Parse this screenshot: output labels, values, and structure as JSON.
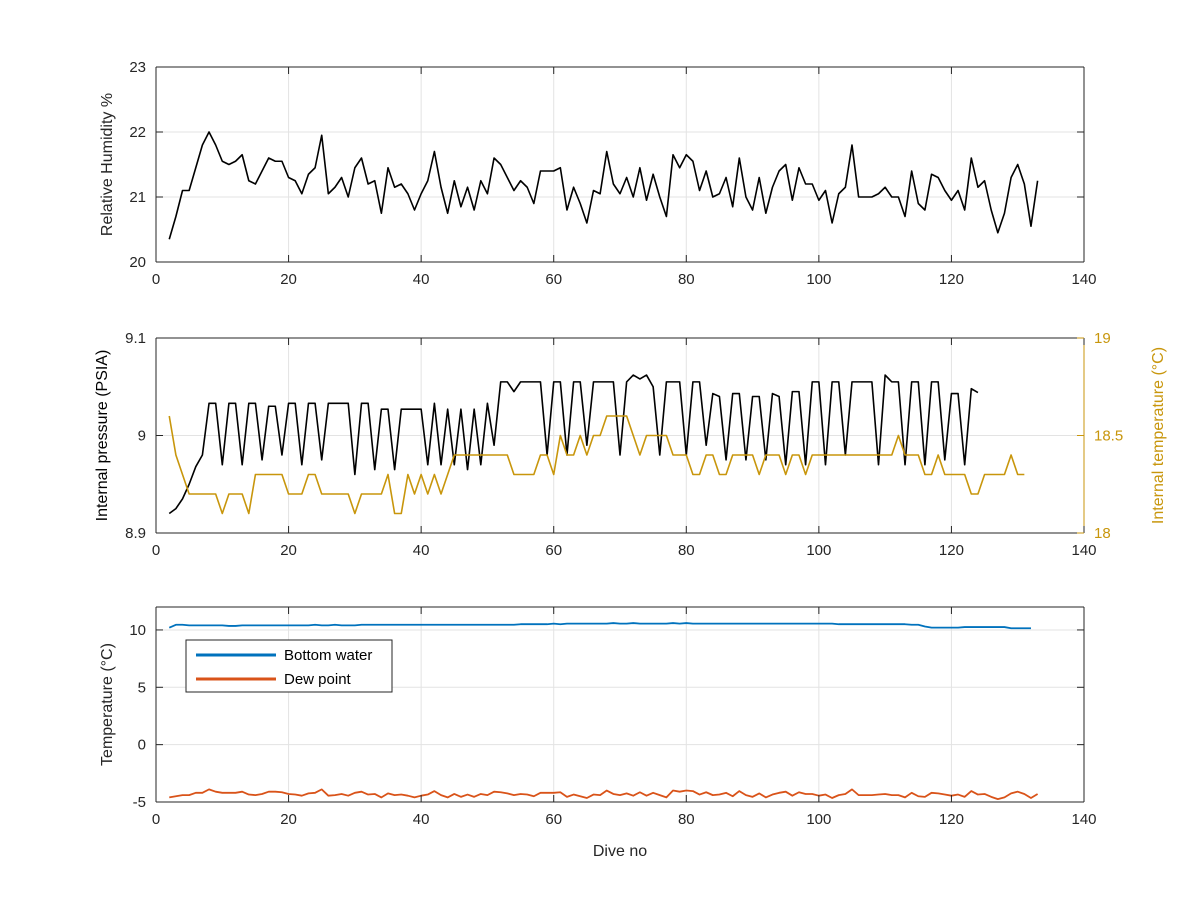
{
  "chart_data": [
    {
      "type": "line",
      "xlabel": "",
      "ylabel": "Relative Humidity %",
      "xlim": [
        0,
        140
      ],
      "ylim": [
        20,
        23
      ],
      "xticks": [
        0,
        20,
        40,
        60,
        80,
        100,
        120,
        140
      ],
      "yticks": [
        20,
        21,
        22,
        23
      ],
      "grid": true,
      "series": [
        {
          "color": "#000000",
          "x_start": 2,
          "x_step": 1,
          "values": [
            20.35,
            20.7,
            21.1,
            21.1,
            21.45,
            21.8,
            22.0,
            21.8,
            21.55,
            21.5,
            21.55,
            21.65,
            21.25,
            21.2,
            21.4,
            21.6,
            21.55,
            21.55,
            21.3,
            21.25,
            21.05,
            21.35,
            21.45,
            21.95,
            21.05,
            21.15,
            21.3,
            21.0,
            21.45,
            21.6,
            21.2,
            21.25,
            20.75,
            21.45,
            21.15,
            21.2,
            21.05,
            20.8,
            21.05,
            21.25,
            21.7,
            21.15,
            20.75,
            21.25,
            20.85,
            21.15,
            20.8,
            21.25,
            21.05,
            21.6,
            21.5,
            21.3,
            21.1,
            21.25,
            21.15,
            20.9,
            21.4,
            21.4,
            21.4,
            21.45,
            20.8,
            21.15,
            20.9,
            20.6,
            21.1,
            21.05,
            21.7,
            21.2,
            21.05,
            21.3,
            21.0,
            21.45,
            20.95,
            21.35,
            21.0,
            20.7,
            21.65,
            21.45,
            21.65,
            21.55,
            21.1,
            21.4,
            21.0,
            21.05,
            21.3,
            20.85,
            21.6,
            21.0,
            20.8,
            21.3,
            20.75,
            21.15,
            21.4,
            21.5,
            20.95,
            21.45,
            21.2,
            21.2,
            20.95,
            21.1,
            20.6,
            21.05,
            21.15,
            21.8,
            21.0,
            21.0,
            21.0,
            21.05,
            21.15,
            21.0,
            21.0,
            20.7,
            21.4,
            20.9,
            20.8,
            21.35,
            21.3,
            21.1,
            20.95,
            21.1,
            20.8,
            21.6,
            21.15,
            21.25,
            20.8,
            20.45,
            20.75,
            21.3,
            21.5,
            21.2,
            20.55,
            21.25
          ]
        }
      ]
    },
    {
      "type": "line",
      "xlabel": "",
      "ylabel": "Internal pressure (PSIA)",
      "y2label": "Internal temperature (°C)",
      "xlim": [
        0,
        140
      ],
      "ylim": [
        8.9,
        9.1
      ],
      "y2lim": [
        18,
        19
      ],
      "xticks": [
        0,
        20,
        40,
        60,
        80,
        100,
        120,
        140
      ],
      "yticks": [
        8.9,
        9,
        9.1
      ],
      "yticklabels": [
        "8.9",
        "9",
        "9.1"
      ],
      "y2ticks": [
        18,
        18.5,
        19
      ],
      "y2ticklabels": [
        "18",
        "18.5",
        "19"
      ],
      "grid": true,
      "series": [
        {
          "color": "#000000",
          "axis": "left",
          "x_start": 2,
          "x_step": 1,
          "values": [
            8.92,
            8.925,
            8.935,
            8.95,
            8.968,
            8.98,
            9.033,
            9.033,
            8.97,
            9.033,
            9.033,
            8.97,
            9.033,
            9.033,
            8.975,
            9.03,
            9.03,
            8.98,
            9.033,
            9.033,
            8.97,
            9.033,
            9.033,
            8.975,
            9.033,
            9.033,
            9.033,
            9.033,
            8.96,
            9.033,
            9.033,
            8.965,
            9.027,
            9.027,
            8.965,
            9.027,
            9.027,
            9.027,
            9.027,
            8.97,
            9.033,
            8.97,
            9.027,
            8.97,
            9.027,
            8.965,
            9.027,
            8.97,
            9.033,
            8.99,
            9.055,
            9.055,
            9.045,
            9.055,
            9.055,
            9.055,
            9.055,
            8.98,
            9.055,
            9.055,
            8.98,
            9.055,
            9.055,
            8.99,
            9.055,
            9.055,
            9.055,
            9.055,
            8.98,
            9.055,
            9.062,
            9.058,
            9.062,
            9.05,
            8.98,
            9.055,
            9.055,
            9.055,
            8.98,
            9.055,
            9.055,
            8.99,
            9.043,
            9.04,
            8.975,
            9.043,
            9.043,
            8.975,
            9.04,
            9.04,
            8.975,
            9.043,
            9.04,
            8.97,
            9.045,
            9.045,
            8.97,
            9.055,
            9.055,
            8.97,
            9.055,
            9.055,
            8.98,
            9.055,
            9.055,
            9.055,
            9.055,
            8.97,
            9.062,
            9.055,
            9.055,
            8.97,
            9.055,
            9.055,
            8.97,
            9.055,
            9.055,
            8.975,
            9.043,
            9.043,
            8.97,
            9.048,
            9.044
          ]
        },
        {
          "color": "#C8960C",
          "axis": "right",
          "x_start": 2,
          "x_step": 1,
          "values": [
            18.6,
            18.4,
            18.3,
            18.2,
            18.2,
            18.2,
            18.2,
            18.2,
            18.1,
            18.2,
            18.2,
            18.2,
            18.1,
            18.3,
            18.3,
            18.3,
            18.3,
            18.3,
            18.2,
            18.2,
            18.2,
            18.3,
            18.3,
            18.2,
            18.2,
            18.2,
            18.2,
            18.2,
            18.1,
            18.2,
            18.2,
            18.2,
            18.2,
            18.3,
            18.1,
            18.1,
            18.3,
            18.2,
            18.3,
            18.2,
            18.3,
            18.2,
            18.3,
            18.4,
            18.4,
            18.4,
            18.4,
            18.4,
            18.4,
            18.4,
            18.4,
            18.4,
            18.3,
            18.3,
            18.3,
            18.3,
            18.4,
            18.4,
            18.3,
            18.5,
            18.4,
            18.4,
            18.5,
            18.4,
            18.5,
            18.5,
            18.6,
            18.6,
            18.6,
            18.6,
            18.5,
            18.4,
            18.5,
            18.5,
            18.5,
            18.5,
            18.4,
            18.4,
            18.4,
            18.3,
            18.3,
            18.4,
            18.4,
            18.3,
            18.3,
            18.4,
            18.4,
            18.4,
            18.4,
            18.3,
            18.4,
            18.4,
            18.4,
            18.3,
            18.4,
            18.4,
            18.3,
            18.4,
            18.4,
            18.4,
            18.4,
            18.4,
            18.4,
            18.4,
            18.4,
            18.4,
            18.4,
            18.4,
            18.4,
            18.4,
            18.5,
            18.4,
            18.4,
            18.4,
            18.3,
            18.3,
            18.4,
            18.3,
            18.3,
            18.3,
            18.3,
            18.2,
            18.2,
            18.3,
            18.3,
            18.3,
            18.3,
            18.4,
            18.3,
            18.3
          ]
        }
      ]
    },
    {
      "type": "line",
      "xlabel": "Dive no",
      "ylabel": "Temperature (°C)",
      "xlim": [
        0,
        140
      ],
      "ylim": [
        -5,
        12
      ],
      "xticks": [
        0,
        20,
        40,
        60,
        80,
        100,
        120,
        140
      ],
      "yticks": [
        -5,
        0,
        5,
        10
      ],
      "grid": true,
      "legend": {
        "position": "top-left"
      },
      "series": [
        {
          "name": "Bottom water",
          "color": "#0072BD",
          "x_start": 2,
          "x_step": 1,
          "values": [
            10.2,
            10.45,
            10.45,
            10.4,
            10.4,
            10.4,
            10.4,
            10.4,
            10.4,
            10.35,
            10.35,
            10.4,
            10.4,
            10.4,
            10.4,
            10.4,
            10.4,
            10.4,
            10.4,
            10.4,
            10.4,
            10.4,
            10.45,
            10.4,
            10.4,
            10.45,
            10.4,
            10.4,
            10.4,
            10.45,
            10.45,
            10.45,
            10.45,
            10.45,
            10.45,
            10.45,
            10.45,
            10.45,
            10.45,
            10.45,
            10.45,
            10.45,
            10.45,
            10.45,
            10.45,
            10.45,
            10.45,
            10.45,
            10.45,
            10.45,
            10.45,
            10.45,
            10.45,
            10.5,
            10.5,
            10.5,
            10.5,
            10.5,
            10.55,
            10.5,
            10.55,
            10.55,
            10.55,
            10.55,
            10.55,
            10.55,
            10.55,
            10.6,
            10.55,
            10.55,
            10.6,
            10.55,
            10.55,
            10.55,
            10.55,
            10.55,
            10.6,
            10.55,
            10.6,
            10.55,
            10.55,
            10.55,
            10.55,
            10.55,
            10.55,
            10.55,
            10.55,
            10.55,
            10.55,
            10.55,
            10.55,
            10.55,
            10.55,
            10.55,
            10.55,
            10.55,
            10.55,
            10.55,
            10.55,
            10.55,
            10.55,
            10.5,
            10.5,
            10.5,
            10.5,
            10.5,
            10.5,
            10.5,
            10.5,
            10.5,
            10.5,
            10.5,
            10.45,
            10.45,
            10.3,
            10.2,
            10.2,
            10.2,
            10.2,
            10.2,
            10.25,
            10.25,
            10.25,
            10.25,
            10.25,
            10.25,
            10.25,
            10.15,
            10.15,
            10.15,
            10.15
          ]
        },
        {
          "name": "Dew point",
          "color": "#D95319",
          "x_start": 2,
          "x_step": 1,
          "values": [
            -4.6,
            -4.5,
            -4.4,
            -4.4,
            -4.2,
            -4.2,
            -3.9,
            -4.1,
            -4.2,
            -4.2,
            -4.2,
            -4.1,
            -4.35,
            -4.4,
            -4.3,
            -4.1,
            -4.1,
            -4.15,
            -4.3,
            -4.35,
            -4.45,
            -4.25,
            -4.2,
            -3.9,
            -4.45,
            -4.4,
            -4.3,
            -4.45,
            -4.2,
            -4.1,
            -4.35,
            -4.3,
            -4.6,
            -4.25,
            -4.4,
            -4.35,
            -4.45,
            -4.6,
            -4.45,
            -4.35,
            -4.05,
            -4.4,
            -4.6,
            -4.3,
            -4.55,
            -4.35,
            -4.55,
            -4.3,
            -4.4,
            -4.1,
            -4.15,
            -4.25,
            -4.4,
            -4.3,
            -4.35,
            -4.5,
            -4.2,
            -4.2,
            -4.2,
            -4.15,
            -4.55,
            -4.35,
            -4.5,
            -4.65,
            -4.35,
            -4.4,
            -4.0,
            -4.3,
            -4.4,
            -4.25,
            -4.45,
            -4.15,
            -4.45,
            -4.2,
            -4.4,
            -4.6,
            -4.0,
            -4.1,
            -4.0,
            -4.05,
            -4.35,
            -4.15,
            -4.4,
            -4.35,
            -4.2,
            -4.5,
            -4.05,
            -4.4,
            -4.55,
            -4.25,
            -4.6,
            -4.35,
            -4.2,
            -4.1,
            -4.45,
            -4.15,
            -4.3,
            -4.3,
            -4.45,
            -4.35,
            -4.65,
            -4.4,
            -4.3,
            -3.9,
            -4.4,
            -4.4,
            -4.4,
            -4.35,
            -4.3,
            -4.4,
            -4.4,
            -4.6,
            -4.2,
            -4.5,
            -4.55,
            -4.2,
            -4.25,
            -4.35,
            -4.45,
            -4.35,
            -4.55,
            -4.05,
            -4.35,
            -4.3,
            -4.55,
            -4.75,
            -4.6,
            -4.25,
            -4.1,
            -4.3,
            -4.65,
            -4.3
          ]
        }
      ]
    }
  ]
}
